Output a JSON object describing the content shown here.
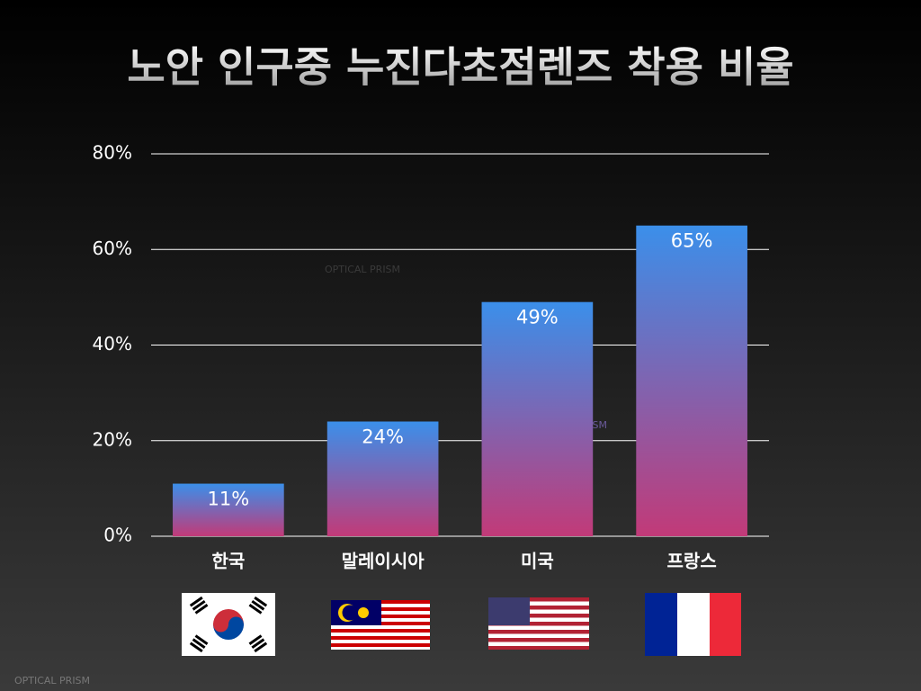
{
  "chart_data": {
    "type": "bar",
    "title": "노안 인구중 누진다초점렌즈 착용 비율",
    "categories": [
      "한국",
      "말레이시아",
      "미국",
      "프랑스"
    ],
    "values": [
      11,
      24,
      49,
      65
    ],
    "value_labels": [
      "11%",
      "24%",
      "49%",
      "65%"
    ],
    "color": [
      "#3b8fea",
      "#c23a78"
    ],
    "ylim": [
      0,
      80
    ],
    "yticks": [
      {
        "value": 0,
        "label": "0%"
      },
      {
        "value": 20,
        "label": "20%"
      },
      {
        "value": 40,
        "label": "40%"
      },
      {
        "value": 60,
        "label": "60%"
      },
      {
        "value": 80,
        "label": "80%"
      }
    ],
    "grid": true,
    "watermarks": [
      "OPTICAL PRISM",
      "OPTICAL PRISM",
      "OPTICAL PRISM"
    ]
  }
}
